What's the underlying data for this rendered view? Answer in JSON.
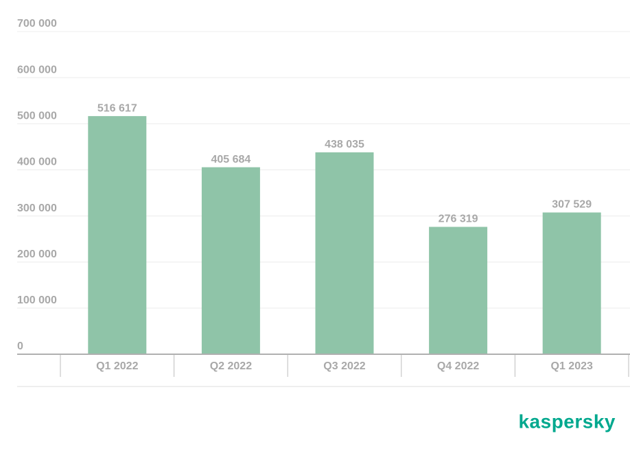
{
  "chart_data": {
    "type": "bar",
    "categories": [
      "Q1 2022",
      "Q2 2022",
      "Q3 2022",
      "Q4 2022",
      "Q1 2023"
    ],
    "values": [
      516617,
      405684,
      438035,
      276319,
      307529
    ],
    "value_labels": [
      "516 617",
      "405 684",
      "438 035",
      "276 319",
      "307 529"
    ],
    "color": "#8fc4a8",
    "ylim": [
      0,
      700000
    ],
    "yticks": [
      0,
      {
        "value": 100000,
        "label": "100 000"
      },
      {
        "value": 200000,
        "label": "200 000"
      },
      {
        "value": 300000,
        "label": "300 000"
      },
      {
        "value": 400000,
        "label": "400 000"
      },
      {
        "value": 500000,
        "label": "500 000"
      },
      {
        "value": 600000,
        "label": "600 000"
      },
      {
        "value": 700000,
        "label": "700 000"
      }
    ],
    "grid": true
  },
  "brand": "kaspersky"
}
